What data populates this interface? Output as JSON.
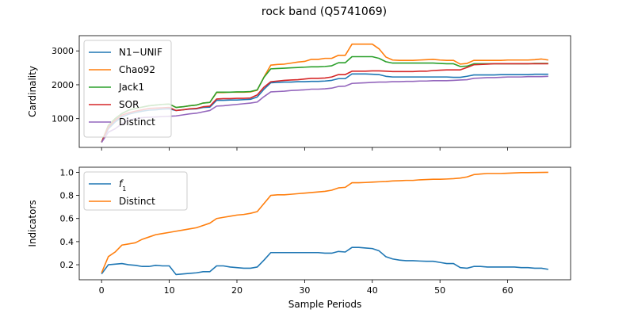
{
  "suptitle": "rock band (Q5741069)",
  "chart_data": [
    {
      "type": "line",
      "ylabel": "Cardinality",
      "xlabel": "",
      "xlim": [
        -3.3,
        69.3
      ],
      "ylim": [
        150,
        3450
      ],
      "xticks": [
        0,
        10,
        20,
        30,
        40,
        50,
        60
      ],
      "yticks": [
        1000,
        2000,
        3000
      ],
      "show_xtick_labels": false,
      "legend": "upper-left",
      "series": [
        {
          "name": "N1−UNIF",
          "color": "#1f77b4",
          "values": [
            300,
            700,
            900,
            1050,
            1130,
            1180,
            1220,
            1250,
            1260,
            1280,
            1290,
            1240,
            1260,
            1280,
            1290,
            1330,
            1340,
            1540,
            1540,
            1550,
            1550,
            1560,
            1570,
            1640,
            1870,
            2060,
            2070,
            2080,
            2080,
            2090,
            2090,
            2100,
            2100,
            2110,
            2130,
            2180,
            2180,
            2320,
            2320,
            2320,
            2310,
            2300,
            2250,
            2230,
            2230,
            2230,
            2230,
            2230,
            2230,
            2230,
            2230,
            2230,
            2220,
            2220,
            2250,
            2290,
            2290,
            2290,
            2290,
            2300,
            2300,
            2300,
            2300,
            2300,
            2310,
            2310,
            2310
          ]
        },
        {
          "name": "Chao92",
          "color": "#ff7f0e",
          "values": [
            300,
            800,
            1000,
            1150,
            1250,
            1300,
            1340,
            1380,
            1400,
            1420,
            1430,
            1330,
            1350,
            1380,
            1400,
            1460,
            1480,
            1770,
            1770,
            1780,
            1780,
            1780,
            1790,
            1840,
            2230,
            2580,
            2600,
            2610,
            2640,
            2670,
            2690,
            2750,
            2750,
            2780,
            2780,
            2870,
            2870,
            3200,
            3200,
            3200,
            3200,
            3060,
            2820,
            2730,
            2720,
            2720,
            2720,
            2730,
            2740,
            2750,
            2730,
            2720,
            2720,
            2610,
            2630,
            2720,
            2720,
            2720,
            2720,
            2720,
            2730,
            2730,
            2730,
            2730,
            2740,
            2760,
            2730
          ]
        },
        {
          "name": "Jack1",
          "color": "#2ca02c",
          "values": [
            300,
            800,
            1000,
            1150,
            1250,
            1300,
            1340,
            1380,
            1400,
            1420,
            1430,
            1330,
            1350,
            1380,
            1400,
            1460,
            1480,
            1780,
            1780,
            1780,
            1790,
            1790,
            1800,
            1850,
            2220,
            2470,
            2480,
            2490,
            2500,
            2510,
            2520,
            2530,
            2530,
            2540,
            2560,
            2650,
            2650,
            2830,
            2830,
            2830,
            2830,
            2780,
            2680,
            2640,
            2640,
            2640,
            2640,
            2640,
            2640,
            2640,
            2630,
            2620,
            2620,
            2540,
            2550,
            2620,
            2620,
            2620,
            2620,
            2620,
            2620,
            2620,
            2620,
            2620,
            2630,
            2630,
            2630
          ]
        },
        {
          "name": "SOR",
          "color": "#d62728",
          "values": [
            300,
            750,
            950,
            1100,
            1170,
            1220,
            1260,
            1300,
            1310,
            1320,
            1330,
            1240,
            1260,
            1290,
            1300,
            1350,
            1370,
            1580,
            1590,
            1590,
            1600,
            1600,
            1610,
            1700,
            1930,
            2090,
            2110,
            2130,
            2140,
            2150,
            2170,
            2190,
            2190,
            2200,
            2230,
            2300,
            2300,
            2400,
            2400,
            2400,
            2410,
            2410,
            2400,
            2390,
            2390,
            2390,
            2390,
            2400,
            2400,
            2420,
            2430,
            2440,
            2440,
            2440,
            2510,
            2590,
            2600,
            2610,
            2620,
            2620,
            2620,
            2620,
            2620,
            2620,
            2620,
            2620,
            2620
          ]
        },
        {
          "name": "Distinct",
          "color": "#9467bd",
          "values": [
            300,
            600,
            700,
            850,
            950,
            1000,
            1030,
            1040,
            1050,
            1060,
            1070,
            1080,
            1110,
            1140,
            1160,
            1200,
            1240,
            1370,
            1380,
            1400,
            1420,
            1440,
            1460,
            1490,
            1650,
            1790,
            1800,
            1810,
            1830,
            1840,
            1850,
            1870,
            1870,
            1880,
            1900,
            1950,
            1960,
            2040,
            2050,
            2060,
            2070,
            2080,
            2080,
            2090,
            2090,
            2100,
            2100,
            2110,
            2110,
            2120,
            2120,
            2120,
            2130,
            2140,
            2150,
            2190,
            2200,
            2210,
            2210,
            2220,
            2230,
            2230,
            2230,
            2240,
            2240,
            2240,
            2250
          ]
        }
      ]
    },
    {
      "type": "line",
      "ylabel": "Indicators",
      "xlabel": "Sample Periods",
      "xlim": [
        -3.3,
        69.3
      ],
      "ylim": [
        0.07,
        1.044
      ],
      "xticks": [
        0,
        10,
        20,
        30,
        40,
        50,
        60
      ],
      "yticks": [
        0.2,
        0.4,
        0.6,
        0.8,
        1.0
      ],
      "ytick_labels": [
        "0.2",
        "0.4",
        "0.6",
        "0.8",
        "1.0"
      ],
      "show_xtick_labels": true,
      "legend": "upper-left",
      "series": [
        {
          "name": "f1",
          "color": "#1f77b4",
          "values": [
            0.12,
            0.2,
            0.205,
            0.21,
            0.2,
            0.195,
            0.185,
            0.185,
            0.195,
            0.19,
            0.19,
            0.115,
            0.12,
            0.125,
            0.13,
            0.14,
            0.14,
            0.19,
            0.19,
            0.18,
            0.175,
            0.17,
            0.17,
            0.18,
            0.24,
            0.305,
            0.305,
            0.305,
            0.305,
            0.305,
            0.305,
            0.305,
            0.305,
            0.3,
            0.3,
            0.315,
            0.31,
            0.35,
            0.35,
            0.345,
            0.34,
            0.32,
            0.27,
            0.25,
            0.24,
            0.235,
            0.235,
            0.232,
            0.23,
            0.23,
            0.22,
            0.21,
            0.21,
            0.175,
            0.17,
            0.185,
            0.185,
            0.18,
            0.18,
            0.18,
            0.18,
            0.18,
            0.175,
            0.175,
            0.17,
            0.17,
            0.16
          ]
        },
        {
          "name": "Distinct",
          "color": "#ff7f0e",
          "values": [
            0.13,
            0.27,
            0.31,
            0.37,
            0.38,
            0.39,
            0.42,
            0.44,
            0.46,
            0.47,
            0.48,
            0.49,
            0.5,
            0.51,
            0.52,
            0.54,
            0.56,
            0.6,
            0.61,
            0.62,
            0.63,
            0.635,
            0.645,
            0.66,
            0.73,
            0.8,
            0.805,
            0.805,
            0.81,
            0.815,
            0.82,
            0.825,
            0.83,
            0.835,
            0.845,
            0.865,
            0.87,
            0.91,
            0.91,
            0.912,
            0.915,
            0.918,
            0.92,
            0.925,
            0.927,
            0.93,
            0.93,
            0.935,
            0.937,
            0.94,
            0.94,
            0.942,
            0.945,
            0.95,
            0.96,
            0.98,
            0.985,
            0.99,
            0.99,
            0.99,
            0.992,
            0.995,
            0.997,
            0.997,
            0.998,
            0.999,
            1.0
          ]
        }
      ]
    }
  ]
}
